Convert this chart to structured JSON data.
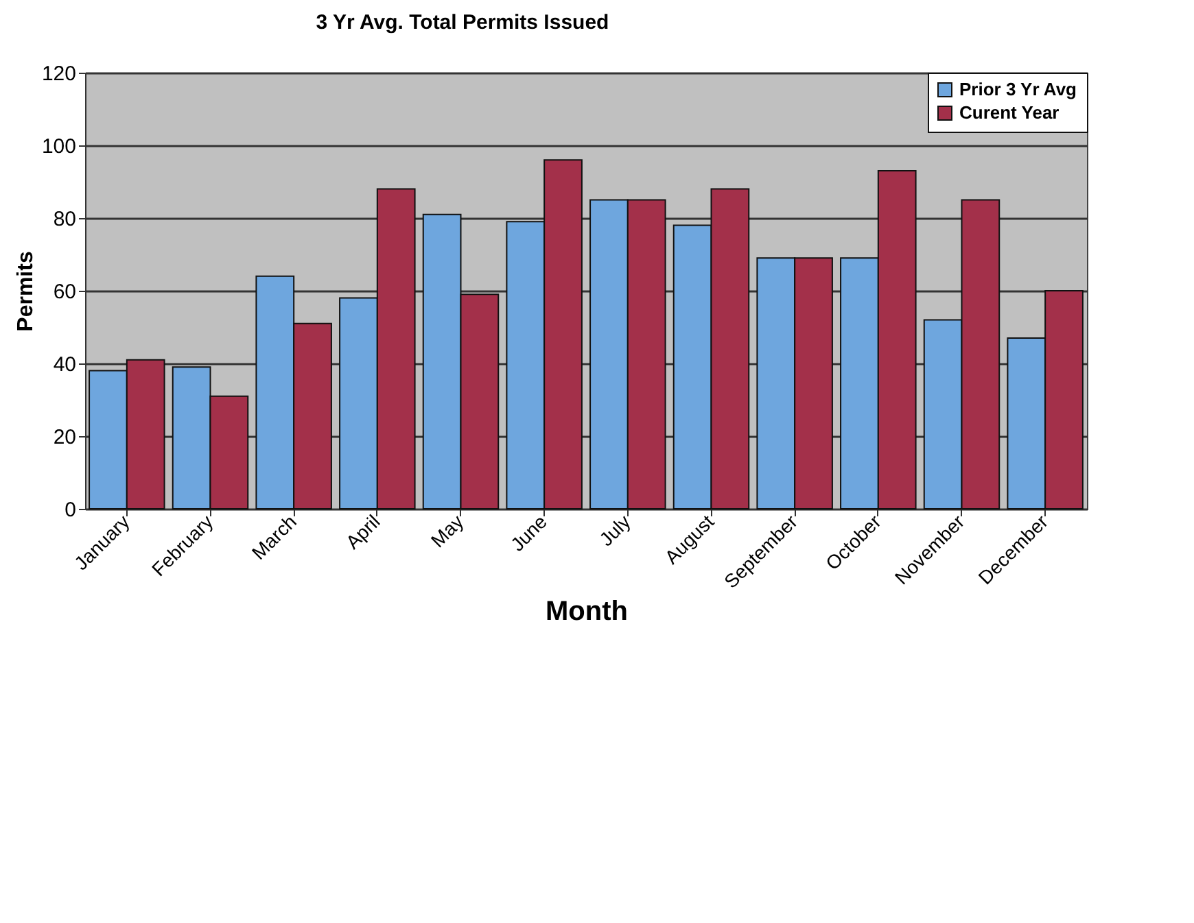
{
  "chart_data": {
    "type": "bar",
    "title": "3 Yr Avg. Total Permits Issued",
    "xlabel": "Month",
    "ylabel": "Permits",
    "categories": [
      "January",
      "February",
      "March",
      "April",
      "May",
      "June",
      "July",
      "August",
      "September",
      "October",
      "November",
      "December"
    ],
    "series": [
      {
        "name": "Prior 3 Yr Avg",
        "color": "#6ea6de",
        "values": [
          38,
          39,
          64,
          58,
          81,
          79,
          85,
          78,
          69,
          69,
          52,
          47
        ]
      },
      {
        "name": "Curent Year",
        "color": "#a3304a",
        "values": [
          41,
          31,
          51,
          88,
          59,
          96,
          85,
          88,
          69,
          93,
          85,
          60
        ]
      }
    ],
    "ylim": [
      0,
      120
    ],
    "yticks": [
      0,
      20,
      40,
      60,
      80,
      100,
      120
    ],
    "grid": "y",
    "legend": "top right"
  }
}
